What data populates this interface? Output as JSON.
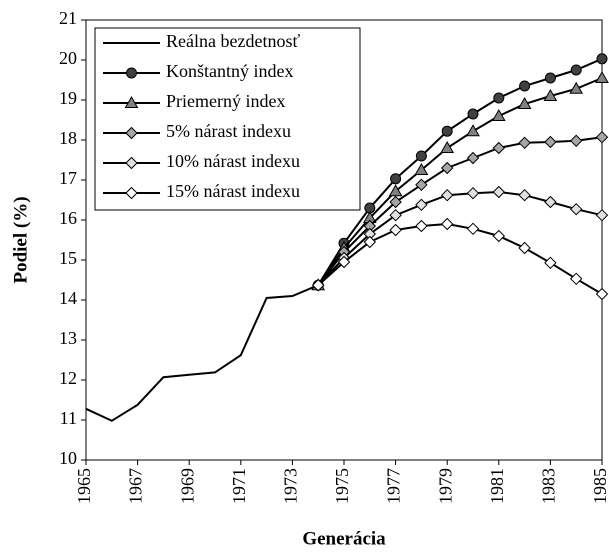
{
  "chart_data": {
    "type": "line",
    "x_label": "Generácia",
    "y_label": "Podiel (%)",
    "x": [
      1965,
      1966,
      1967,
      1968,
      1969,
      1970,
      1971,
      1972,
      1973,
      1974,
      1975,
      1976,
      1977,
      1978,
      1979,
      1980,
      1981,
      1982,
      1983,
      1984,
      1985
    ],
    "xlim": [
      1965,
      1985
    ],
    "xticks": [
      1965,
      1967,
      1969,
      1971,
      1973,
      1975,
      1977,
      1979,
      1981,
      1983,
      1985
    ],
    "ylim": [
      10,
      21
    ],
    "yticks": [
      10,
      11,
      12,
      13,
      14,
      15,
      16,
      17,
      18,
      19,
      20,
      21
    ],
    "grid": false,
    "legend": "upper left",
    "series": [
      {
        "name": "Reálna bezdetnosť",
        "color": "#000000",
        "values": [
          11.28,
          10.98,
          11.38,
          12.07,
          12.13,
          12.19,
          12.62,
          14.05,
          14.1,
          14.37,
          null,
          null,
          null,
          null,
          null,
          null,
          null,
          null,
          null,
          null,
          null
        ]
      },
      {
        "name": "Konštantný index",
        "color": "#000000",
        "marker": "circle",
        "marker_color": "#404040",
        "values": [
          null,
          null,
          null,
          null,
          null,
          null,
          null,
          null,
          null,
          14.37,
          15.42,
          16.3,
          17.03,
          17.6,
          18.22,
          18.65,
          19.05,
          19.35,
          19.55,
          19.75,
          20.03
        ]
      },
      {
        "name": "Priemerný index",
        "color": "#000000",
        "marker": "triangle",
        "marker_color": "#808080",
        "values": [
          null,
          null,
          null,
          null,
          null,
          null,
          null,
          null,
          null,
          14.37,
          15.3,
          16.05,
          16.72,
          17.25,
          17.8,
          18.22,
          18.6,
          18.9,
          19.1,
          19.28,
          19.55
        ]
      },
      {
        "name": "5% nárast indexu",
        "color": "#000000",
        "marker": "diamond",
        "marker_color": "#a6a6a6",
        "values": [
          null,
          null,
          null,
          null,
          null,
          null,
          null,
          null,
          null,
          14.37,
          15.2,
          15.85,
          16.45,
          16.88,
          17.3,
          17.55,
          17.8,
          17.93,
          17.95,
          17.98,
          18.07
        ]
      },
      {
        "name": "10% nárast indexu",
        "color": "#000000",
        "marker": "diamond",
        "marker_color": "#e0e0e0",
        "values": [
          null,
          null,
          null,
          null,
          null,
          null,
          null,
          null,
          null,
          14.37,
          15.05,
          15.65,
          16.12,
          16.38,
          16.62,
          16.67,
          16.7,
          16.62,
          16.45,
          16.27,
          16.12
        ]
      },
      {
        "name": "15% nárast indexu",
        "color": "#000000",
        "marker": "diamond",
        "marker_color": "#ffffff",
        "values": [
          null,
          null,
          null,
          null,
          null,
          null,
          null,
          null,
          null,
          14.37,
          14.95,
          15.45,
          15.75,
          15.85,
          15.9,
          15.78,
          15.6,
          15.3,
          14.93,
          14.53,
          14.15
        ]
      }
    ]
  }
}
